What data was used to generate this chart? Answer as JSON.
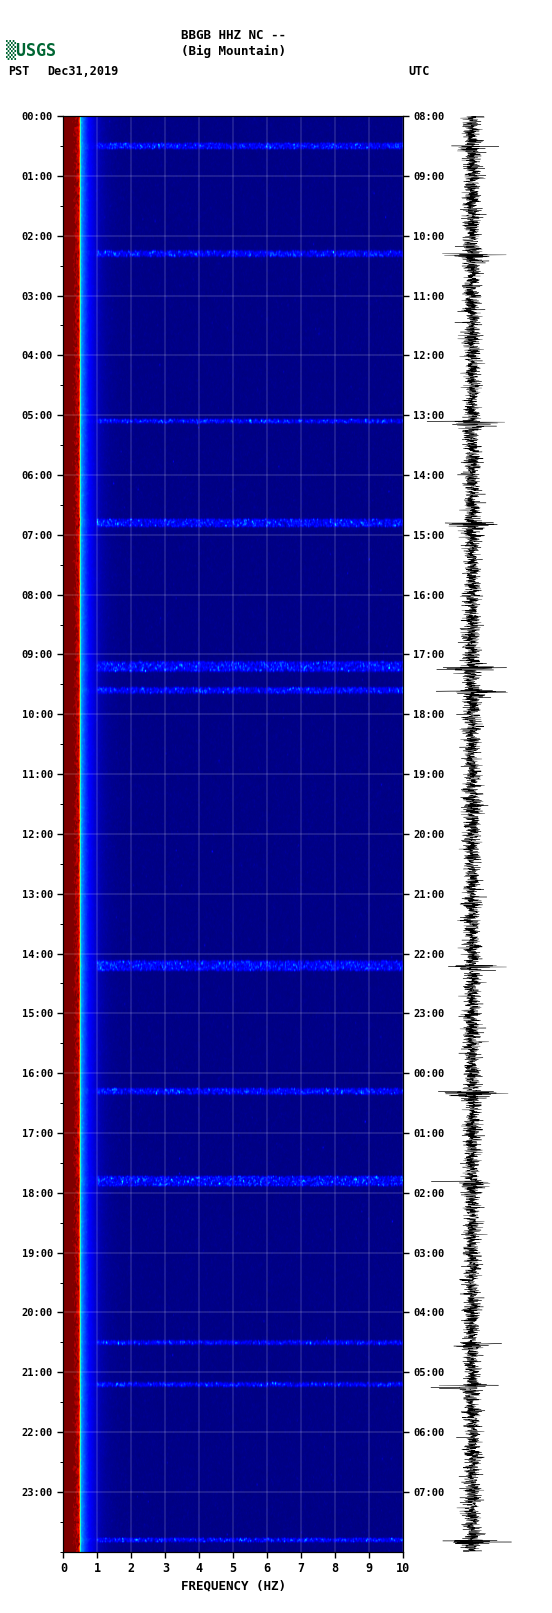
{
  "title_line1": "BBGB HHZ NC --",
  "title_line2": "(Big Mountain)",
  "left_label": "PST",
  "date_label": "Dec31,2019",
  "right_label": "UTC",
  "left_times": [
    "00:00",
    "01:00",
    "02:00",
    "03:00",
    "04:00",
    "05:00",
    "06:00",
    "07:00",
    "08:00",
    "09:00",
    "10:00",
    "11:00",
    "12:00",
    "13:00",
    "14:00",
    "15:00",
    "16:00",
    "17:00",
    "18:00",
    "19:00",
    "20:00",
    "21:00",
    "22:00",
    "23:00"
  ],
  "right_times": [
    "08:00",
    "09:00",
    "10:00",
    "11:00",
    "12:00",
    "13:00",
    "14:00",
    "15:00",
    "16:00",
    "17:00",
    "18:00",
    "19:00",
    "20:00",
    "21:00",
    "22:00",
    "23:00",
    "00:00",
    "01:00",
    "02:00",
    "03:00",
    "04:00",
    "05:00",
    "06:00",
    "07:00"
  ],
  "xlabel": "FREQUENCY (HZ)",
  "freq_min": 0,
  "freq_max": 10,
  "freq_ticks": [
    0,
    1,
    2,
    3,
    4,
    5,
    6,
    7,
    8,
    9,
    10
  ],
  "time_hours": 24,
  "background_color": "#ffffff",
  "usgs_green": "#006633",
  "spectrogram_cmap": "jet",
  "noise_seed": 42
}
